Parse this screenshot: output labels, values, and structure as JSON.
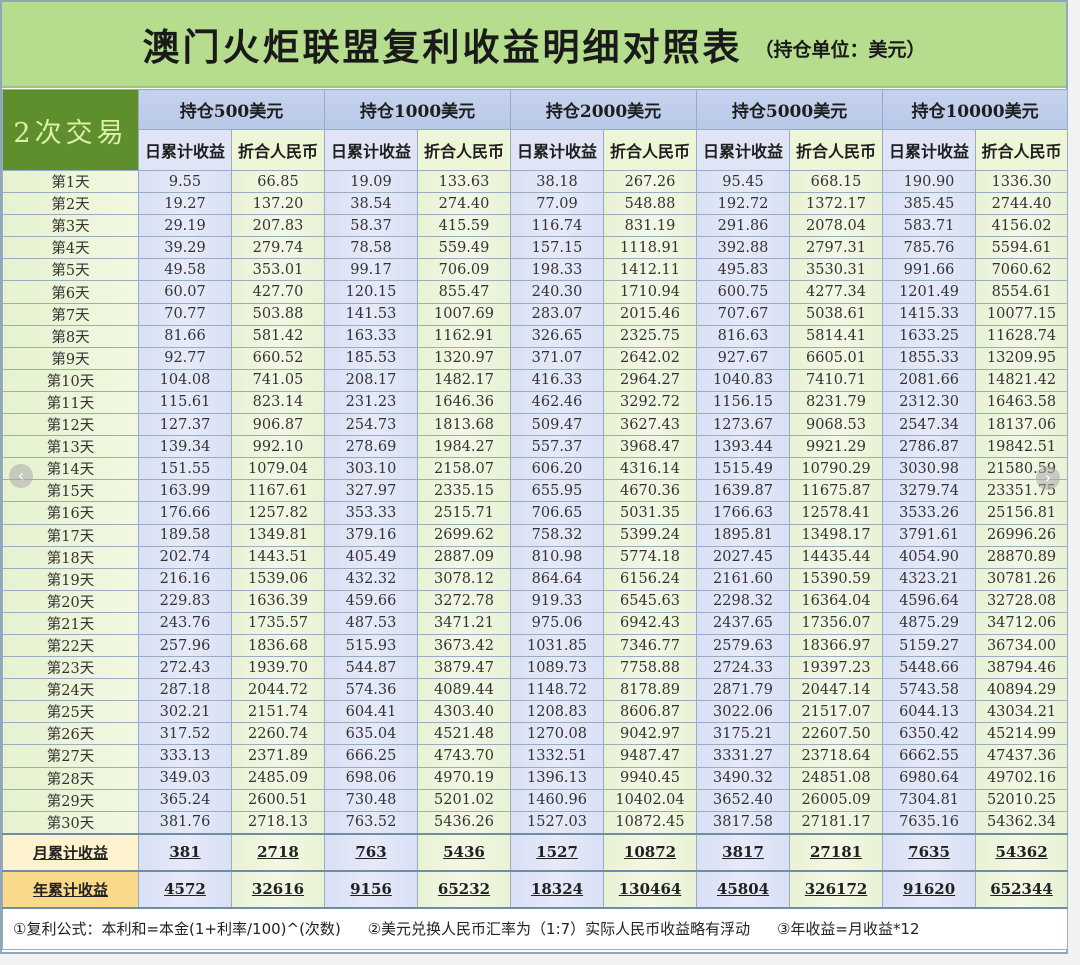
{
  "title": {
    "main": "澳门火炬联盟复利收益明细对照表",
    "unit": "（持仓单位：美元）"
  },
  "corner_label": "2次交易",
  "groups": [
    {
      "label": "持仓500美元",
      "usd_header": "日累计收益",
      "cny_header": "折合人民币"
    },
    {
      "label": "持仓1000美元",
      "usd_header": "日累计收益",
      "cny_header": "折合人民币"
    },
    {
      "label": "持仓2000美元",
      "usd_header": "日累计收益",
      "cny_header": "折合人民币"
    },
    {
      "label": "持仓5000美元",
      "usd_header": "日累计收益",
      "cny_header": "折合人民币"
    },
    {
      "label": "持仓10000美元",
      "usd_header": "日累计收益",
      "cny_header": "折合人民币"
    }
  ],
  "rows": [
    {
      "day": "第1天",
      "values": [
        "9.55",
        "66.85",
        "19.09",
        "133.63",
        "38.18",
        "267.26",
        "95.45",
        "668.15",
        "190.90",
        "1336.30"
      ]
    },
    {
      "day": "第2天",
      "values": [
        "19.27",
        "137.20",
        "38.54",
        "274.40",
        "77.09",
        "548.88",
        "192.72",
        "1372.17",
        "385.45",
        "2744.40"
      ]
    },
    {
      "day": "第3天",
      "values": [
        "29.19",
        "207.83",
        "58.37",
        "415.59",
        "116.74",
        "831.19",
        "291.86",
        "2078.04",
        "583.71",
        "4156.02"
      ]
    },
    {
      "day": "第4天",
      "values": [
        "39.29",
        "279.74",
        "78.58",
        "559.49",
        "157.15",
        "1118.91",
        "392.88",
        "2797.31",
        "785.76",
        "5594.61"
      ]
    },
    {
      "day": "第5天",
      "values": [
        "49.58",
        "353.01",
        "99.17",
        "706.09",
        "198.33",
        "1412.11",
        "495.83",
        "3530.31",
        "991.66",
        "7060.62"
      ]
    },
    {
      "day": "第6天",
      "values": [
        "60.07",
        "427.70",
        "120.15",
        "855.47",
        "240.30",
        "1710.94",
        "600.75",
        "4277.34",
        "1201.49",
        "8554.61"
      ]
    },
    {
      "day": "第7天",
      "values": [
        "70.77",
        "503.88",
        "141.53",
        "1007.69",
        "283.07",
        "2015.46",
        "707.67",
        "5038.61",
        "1415.33",
        "10077.15"
      ]
    },
    {
      "day": "第8天",
      "values": [
        "81.66",
        "581.42",
        "163.33",
        "1162.91",
        "326.65",
        "2325.75",
        "816.63",
        "5814.41",
        "1633.25",
        "11628.74"
      ]
    },
    {
      "day": "第9天",
      "values": [
        "92.77",
        "660.52",
        "185.53",
        "1320.97",
        "371.07",
        "2642.02",
        "927.67",
        "6605.01",
        "1855.33",
        "13209.95"
      ]
    },
    {
      "day": "第10天",
      "values": [
        "104.08",
        "741.05",
        "208.17",
        "1482.17",
        "416.33",
        "2964.27",
        "1040.83",
        "7410.71",
        "2081.66",
        "14821.42"
      ]
    },
    {
      "day": "第11天",
      "values": [
        "115.61",
        "823.14",
        "231.23",
        "1646.36",
        "462.46",
        "3292.72",
        "1156.15",
        "8231.79",
        "2312.30",
        "16463.58"
      ]
    },
    {
      "day": "第12天",
      "values": [
        "127.37",
        "906.87",
        "254.73",
        "1813.68",
        "509.47",
        "3627.43",
        "1273.67",
        "9068.53",
        "2547.34",
        "18137.06"
      ]
    },
    {
      "day": "第13天",
      "values": [
        "139.34",
        "992.10",
        "278.69",
        "1984.27",
        "557.37",
        "3968.47",
        "1393.44",
        "9921.29",
        "2786.87",
        "19842.51"
      ]
    },
    {
      "day": "第14天",
      "values": [
        "151.55",
        "1079.04",
        "303.10",
        "2158.07",
        "606.20",
        "4316.14",
        "1515.49",
        "10790.29",
        "3030.98",
        "21580.59"
      ]
    },
    {
      "day": "第15天",
      "values": [
        "163.99",
        "1167.61",
        "327.97",
        "2335.15",
        "655.95",
        "4670.36",
        "1639.87",
        "11675.87",
        "3279.74",
        "23351.75"
      ]
    },
    {
      "day": "第16天",
      "values": [
        "176.66",
        "1257.82",
        "353.33",
        "2515.71",
        "706.65",
        "5031.35",
        "1766.63",
        "12578.41",
        "3533.26",
        "25156.81"
      ]
    },
    {
      "day": "第17天",
      "values": [
        "189.58",
        "1349.81",
        "379.16",
        "2699.62",
        "758.32",
        "5399.24",
        "1895.81",
        "13498.17",
        "3791.61",
        "26996.26"
      ]
    },
    {
      "day": "第18天",
      "values": [
        "202.74",
        "1443.51",
        "405.49",
        "2887.09",
        "810.98",
        "5774.18",
        "2027.45",
        "14435.44",
        "4054.90",
        "28870.89"
      ]
    },
    {
      "day": "第19天",
      "values": [
        "216.16",
        "1539.06",
        "432.32",
        "3078.12",
        "864.64",
        "6156.24",
        "2161.60",
        "15390.59",
        "4323.21",
        "30781.26"
      ]
    },
    {
      "day": "第20天",
      "values": [
        "229.83",
        "1636.39",
        "459.66",
        "3272.78",
        "919.33",
        "6545.63",
        "2298.32",
        "16364.04",
        "4596.64",
        "32728.08"
      ]
    },
    {
      "day": "第21天",
      "values": [
        "243.76",
        "1735.57",
        "487.53",
        "3471.21",
        "975.06",
        "6942.43",
        "2437.65",
        "17356.07",
        "4875.29",
        "34712.06"
      ]
    },
    {
      "day": "第22天",
      "values": [
        "257.96",
        "1836.68",
        "515.93",
        "3673.42",
        "1031.85",
        "7346.77",
        "2579.63",
        "18366.97",
        "5159.27",
        "36734.00"
      ]
    },
    {
      "day": "第23天",
      "values": [
        "272.43",
        "1939.70",
        "544.87",
        "3879.47",
        "1089.73",
        "7758.88",
        "2724.33",
        "19397.23",
        "5448.66",
        "38794.46"
      ]
    },
    {
      "day": "第24天",
      "values": [
        "287.18",
        "2044.72",
        "574.36",
        "4089.44",
        "1148.72",
        "8178.89",
        "2871.79",
        "20447.14",
        "5743.58",
        "40894.29"
      ]
    },
    {
      "day": "第25天",
      "values": [
        "302.21",
        "2151.74",
        "604.41",
        "4303.40",
        "1208.83",
        "8606.87",
        "3022.06",
        "21517.07",
        "6044.13",
        "43034.21"
      ]
    },
    {
      "day": "第26天",
      "values": [
        "317.52",
        "2260.74",
        "635.04",
        "4521.48",
        "1270.08",
        "9042.97",
        "3175.21",
        "22607.50",
        "6350.42",
        "45214.99"
      ]
    },
    {
      "day": "第27天",
      "values": [
        "333.13",
        "2371.89",
        "666.25",
        "4743.70",
        "1332.51",
        "9487.47",
        "3331.27",
        "23718.64",
        "6662.55",
        "47437.36"
      ]
    },
    {
      "day": "第28天",
      "values": [
        "349.03",
        "2485.09",
        "698.06",
        "4970.19",
        "1396.13",
        "9940.45",
        "3490.32",
        "24851.08",
        "6980.64",
        "49702.16"
      ]
    },
    {
      "day": "第29天",
      "values": [
        "365.24",
        "2600.51",
        "730.48",
        "5201.02",
        "1460.96",
        "10402.04",
        "3652.40",
        "26005.09",
        "7304.81",
        "52010.25"
      ]
    },
    {
      "day": "第30天",
      "values": [
        "381.76",
        "2718.13",
        "763.52",
        "5436.26",
        "1527.03",
        "10872.45",
        "3817.58",
        "27181.17",
        "7635.16",
        "54362.34"
      ]
    }
  ],
  "monthly": {
    "label": "月累计收益",
    "values": [
      "381",
      "2718",
      "763",
      "5436",
      "1527",
      "10872",
      "3817",
      "27181",
      "7635",
      "54362"
    ]
  },
  "yearly": {
    "label": "年累计收益",
    "values": [
      "4572",
      "32616",
      "9156",
      "65232",
      "18324",
      "130464",
      "45804",
      "326172",
      "91620",
      "652344"
    ]
  },
  "notes": [
    "①复利公式：本利和=本金(1+利率/100)^(次数)",
    "②美元兑换人民币汇率为（1:7）实际人民币收益略有浮动",
    "③年收益=月收益*12"
  ],
  "nav": {
    "prev_icon": "‹",
    "next_icon": "›"
  }
}
